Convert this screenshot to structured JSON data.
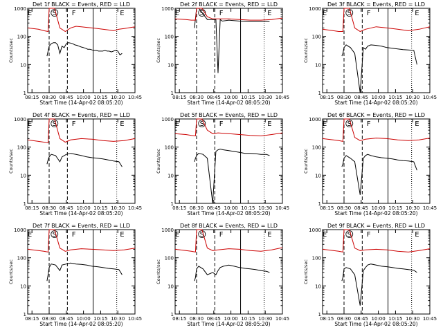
{
  "chart_data": [
    {
      "type": "line",
      "title": "Det 1f BLACK = Events, RED = LLD",
      "xlabel": "Start Time (14-Apr-02 08:05:20)",
      "ylabel": "Counts/sec",
      "x_ticks": [
        "08:15",
        "08:30",
        "08:45",
        "10:00",
        "10:15",
        "10:30",
        "10:45"
      ],
      "y_ticks": [
        "1",
        "10",
        "100",
        "1000"
      ],
      "ylim": [
        1,
        1000
      ],
      "yscale": "log",
      "markers": [
        "E",
        "S",
        "F",
        "E"
      ],
      "series": [
        {
          "color": "#000000",
          "x": [
            0.18,
            0.19,
            0.2,
            0.22,
            0.24,
            0.26,
            0.28,
            0.3,
            0.32,
            0.34,
            0.36,
            0.38,
            0.4,
            0.42,
            0.44,
            0.46,
            0.48,
            0.5,
            0.52,
            0.54,
            0.56,
            0.58,
            0.6,
            0.62,
            0.64,
            0.66,
            0.68,
            0.7,
            0.72,
            0.74,
            0.76,
            0.78,
            0.8,
            0.82,
            0.84,
            0.86,
            0.88
          ],
          "y": [
            20,
            30,
            45,
            55,
            60,
            60,
            50,
            25,
            45,
            40,
            55,
            60,
            58,
            55,
            50,
            48,
            45,
            42,
            40,
            38,
            35,
            35,
            33,
            32,
            32,
            30,
            30,
            30,
            32,
            30,
            30,
            28,
            30,
            32,
            30,
            22,
            25
          ]
        },
        {
          "color": "#cc0000",
          "x": [
            0.0,
            0.1,
            0.15,
            0.19,
            0.2,
            0.25,
            0.3,
            0.35,
            0.4,
            0.45,
            0.5,
            0.55,
            0.6,
            0.65,
            0.7,
            0.75,
            0.8,
            0.85,
            0.9,
            1.0
          ],
          "y": [
            200,
            180,
            160,
            150,
            1000,
            1000,
            200,
            150,
            200,
            230,
            220,
            210,
            200,
            190,
            180,
            170,
            160,
            180,
            190,
            220
          ]
        }
      ]
    },
    {
      "type": "line",
      "title": "Det 2f BLACK = Events, RED = LLD",
      "xlabel": "Start Time (14-Apr-02 08:05:20)",
      "ylabel": "Counts/sec",
      "x_ticks": [
        "08:15",
        "08:30",
        "08:45",
        "10:00",
        "10:15",
        "10:30",
        "10:45"
      ],
      "y_ticks": [
        "1",
        "10",
        "100",
        "1000"
      ],
      "ylim": [
        1,
        1000
      ],
      "yscale": "log",
      "markers": [
        "E",
        "S",
        "F",
        "E"
      ],
      "series": [
        {
          "color": "#000000",
          "x": [
            0.18,
            0.2,
            0.22,
            0.3,
            0.38,
            0.4,
            0.42,
            0.44,
            0.5,
            0.6,
            0.7,
            0.8,
            0.88
          ],
          "y": [
            200,
            1000,
            1000,
            400,
            400,
            5,
            400,
            350,
            380,
            350,
            340,
            340,
            340
          ]
        },
        {
          "color": "#cc0000",
          "x": [
            0.0,
            0.1,
            0.15,
            0.19,
            0.2,
            0.25,
            0.3,
            0.35,
            0.4,
            0.5,
            0.6,
            0.7,
            0.8,
            0.9,
            1.0
          ],
          "y": [
            420,
            400,
            380,
            380,
            1000,
            1000,
            500,
            420,
            420,
            420,
            400,
            380,
            380,
            400,
            450
          ]
        }
      ]
    },
    {
      "type": "line",
      "title": "Det 3f BLACK = Events, RED = LLD",
      "xlabel": "Start Time (14-Apr-02 08:05:20)",
      "ylabel": "Counts/sec",
      "x_ticks": [
        "08:15",
        "08:30",
        "08:45",
        "10:00",
        "10:15",
        "10:30",
        "10:45"
      ],
      "y_ticks": [
        "1",
        "10",
        "100",
        "1000"
      ],
      "ylim": [
        1,
        1000
      ],
      "yscale": "log",
      "markers": [
        "E",
        "S",
        "F",
        "E"
      ],
      "series": [
        {
          "color": "#000000",
          "x": [
            0.18,
            0.19,
            0.2,
            0.22,
            0.26,
            0.3,
            0.35,
            0.38,
            0.4,
            0.42,
            0.45,
            0.5,
            0.55,
            0.6,
            0.65,
            0.7,
            0.75,
            0.8,
            0.85,
            0.88
          ],
          "y": [
            20,
            25,
            40,
            50,
            40,
            25,
            1,
            40,
            35,
            45,
            50,
            48,
            45,
            40,
            38,
            36,
            34,
            33,
            32,
            10
          ]
        },
        {
          "color": "#cc0000",
          "x": [
            0.0,
            0.1,
            0.15,
            0.19,
            0.2,
            0.25,
            0.3,
            0.35,
            0.4,
            0.5,
            0.6,
            0.7,
            0.8,
            0.9,
            1.0
          ],
          "y": [
            180,
            160,
            150,
            150,
            1000,
            1000,
            200,
            150,
            180,
            220,
            200,
            180,
            160,
            180,
            220
          ]
        }
      ]
    },
    {
      "type": "line",
      "title": "Det 4f BLACK = Events, RED = LLD",
      "xlabel": "Start Time (14-Apr-02 08:05:20)",
      "ylabel": "Counts/sec",
      "x_ticks": [
        "08:15",
        "08:30",
        "08:45",
        "10:00",
        "10:15",
        "10:30",
        "10:45"
      ],
      "y_ticks": [
        "1",
        "10",
        "100",
        "1000"
      ],
      "ylim": [
        1,
        1000
      ],
      "yscale": "log",
      "markers": [
        "E",
        "S",
        "F",
        "E"
      ],
      "series": [
        {
          "color": "#000000",
          "x": [
            0.18,
            0.19,
            0.2,
            0.22,
            0.26,
            0.3,
            0.32,
            0.36,
            0.4,
            0.45,
            0.5,
            0.55,
            0.6,
            0.65,
            0.7,
            0.75,
            0.8,
            0.85,
            0.88
          ],
          "y": [
            25,
            35,
            45,
            55,
            50,
            30,
            45,
            55,
            60,
            55,
            50,
            45,
            42,
            40,
            38,
            35,
            32,
            30,
            20
          ]
        },
        {
          "color": "#cc0000",
          "x": [
            0.0,
            0.1,
            0.15,
            0.19,
            0.2,
            0.25,
            0.3,
            0.35,
            0.4,
            0.5,
            0.6,
            0.7,
            0.8,
            0.9,
            1.0
          ],
          "y": [
            180,
            160,
            150,
            140,
            1000,
            1000,
            200,
            150,
            180,
            200,
            190,
            170,
            160,
            170,
            200
          ]
        }
      ]
    },
    {
      "type": "line",
      "title": "Det 5f BLACK = Events, RED = LLD",
      "xlabel": "Start Time (14-Apr-02 08:05:20)",
      "ylabel": "Counts/sec",
      "x_ticks": [
        "08:15",
        "08:30",
        "08:45",
        "10:00",
        "10:15",
        "10:30",
        "10:45"
      ],
      "y_ticks": [
        "1",
        "10",
        "100",
        "1000"
      ],
      "ylim": [
        1,
        1000
      ],
      "yscale": "log",
      "markers": [
        "E",
        "S",
        "F",
        "E"
      ],
      "series": [
        {
          "color": "#000000",
          "x": [
            0.18,
            0.19,
            0.2,
            0.22,
            0.26,
            0.3,
            0.35,
            0.38,
            0.4,
            0.42,
            0.45,
            0.5,
            0.55,
            0.6,
            0.65,
            0.7,
            0.75,
            0.8,
            0.85,
            0.88
          ],
          "y": [
            30,
            40,
            50,
            60,
            55,
            40,
            1,
            70,
            80,
            85,
            80,
            75,
            70,
            65,
            60,
            60,
            58,
            55,
            55,
            50
          ]
        },
        {
          "color": "#cc0000",
          "x": [
            0.0,
            0.1,
            0.15,
            0.19,
            0.2,
            0.25,
            0.3,
            0.35,
            0.4,
            0.5,
            0.6,
            0.7,
            0.8,
            0.9,
            1.0
          ],
          "y": [
            300,
            280,
            260,
            250,
            1000,
            1000,
            400,
            300,
            320,
            300,
            280,
            260,
            250,
            280,
            320
          ]
        }
      ]
    },
    {
      "type": "line",
      "title": "Det 6f BLACK = Events, RED = LLD",
      "xlabel": "Start Time (14-Apr-02 08:05:20)",
      "ylabel": "Counts/sec",
      "x_ticks": [
        "08:15",
        "08:30",
        "08:45",
        "10:00",
        "10:15",
        "10:30",
        "10:45"
      ],
      "y_ticks": [
        "1",
        "10",
        "100",
        "1000"
      ],
      "ylim": [
        1,
        1000
      ],
      "yscale": "log",
      "markers": [
        "E",
        "S",
        "F",
        "E"
      ],
      "series": [
        {
          "color": "#000000",
          "x": [
            0.18,
            0.19,
            0.2,
            0.22,
            0.26,
            0.3,
            0.35,
            0.38,
            0.4,
            0.42,
            0.45,
            0.5,
            0.55,
            0.6,
            0.65,
            0.7,
            0.75,
            0.8,
            0.85,
            0.88
          ],
          "y": [
            20,
            25,
            40,
            50,
            40,
            30,
            2,
            40,
            50,
            55,
            50,
            45,
            42,
            40,
            38,
            35,
            33,
            32,
            30,
            15
          ]
        },
        {
          "color": "#cc0000",
          "x": [
            0.0,
            0.1,
            0.15,
            0.19,
            0.2,
            0.25,
            0.3,
            0.35,
            0.4,
            0.5,
            0.6,
            0.7,
            0.8,
            0.9,
            1.0
          ],
          "y": [
            200,
            180,
            170,
            160,
            1000,
            1000,
            220,
            170,
            190,
            210,
            200,
            180,
            170,
            180,
            210
          ]
        }
      ]
    },
    {
      "type": "line",
      "title": "Det 7f BLACK = Events, RED = LLD",
      "xlabel": "Start Time (14-Apr-02 08:05:20)",
      "ylabel": "Counts/sec",
      "x_ticks": [
        "08:15",
        "08:30",
        "08:45",
        "10:00",
        "10:15",
        "10:30",
        "10:45"
      ],
      "y_ticks": [
        "1",
        "10",
        "100",
        "1000"
      ],
      "ylim": [
        1,
        1000
      ],
      "yscale": "log",
      "markers": [
        "E",
        "S",
        "F",
        "E"
      ],
      "series": [
        {
          "color": "#000000",
          "x": [
            0.18,
            0.19,
            0.2,
            0.22,
            0.26,
            0.3,
            0.32,
            0.36,
            0.4,
            0.45,
            0.5,
            0.55,
            0.6,
            0.65,
            0.7,
            0.75,
            0.8,
            0.85,
            0.88
          ],
          "y": [
            15,
            25,
            45,
            60,
            55,
            35,
            55,
            60,
            65,
            60,
            58,
            55,
            50,
            48,
            45,
            42,
            40,
            38,
            25
          ]
        },
        {
          "color": "#cc0000",
          "x": [
            0.0,
            0.1,
            0.15,
            0.19,
            0.2,
            0.25,
            0.3,
            0.35,
            0.4,
            0.5,
            0.6,
            0.7,
            0.8,
            0.9,
            1.0
          ],
          "y": [
            200,
            180,
            170,
            160,
            1000,
            1000,
            220,
            170,
            190,
            210,
            200,
            190,
            180,
            190,
            220
          ]
        }
      ]
    },
    {
      "type": "line",
      "title": "Det 8f BLACK = Events, RED = LLD",
      "xlabel": "Start Time (14-Apr-02 08:05:20)",
      "ylabel": "Counts/sec",
      "x_ticks": [
        "08:15",
        "08:30",
        "08:45",
        "10:00",
        "10:15",
        "10:30",
        "10:45"
      ],
      "y_ticks": [
        "1",
        "10",
        "100",
        "1000"
      ],
      "ylim": [
        1,
        1000
      ],
      "yscale": "log",
      "markers": [
        "E",
        "S",
        "F",
        "E"
      ],
      "series": [
        {
          "color": "#000000",
          "x": [
            0.18,
            0.19,
            0.2,
            0.22,
            0.26,
            0.3,
            0.35,
            0.38,
            0.4,
            0.42,
            0.45,
            0.5,
            0.55,
            0.6,
            0.65,
            0.7,
            0.75,
            0.8,
            0.85,
            0.88
          ],
          "y": [
            15,
            20,
            40,
            50,
            40,
            25,
            30,
            25,
            35,
            45,
            50,
            55,
            50,
            45,
            42,
            40,
            38,
            35,
            33,
            30
          ]
        },
        {
          "color": "#cc0000",
          "x": [
            0.0,
            0.1,
            0.15,
            0.19,
            0.2,
            0.25,
            0.3,
            0.35,
            0.4,
            0.5,
            0.6,
            0.7,
            0.8,
            0.9,
            1.0
          ],
          "y": [
            200,
            180,
            170,
            160,
            1000,
            1000,
            220,
            180,
            190,
            210,
            200,
            180,
            170,
            190,
            230
          ]
        }
      ]
    },
    {
      "type": "line",
      "title": "Det 9f BLACK = Events, RED = LLD",
      "xlabel": "Start Time (14-Apr-02 08:05:20)",
      "ylabel": "Counts/sec",
      "x_ticks": [
        "08:15",
        "08:30",
        "08:45",
        "10:00",
        "10:15",
        "10:30",
        "10:45"
      ],
      "y_ticks": [
        "1",
        "10",
        "100",
        "1000"
      ],
      "ylim": [
        1,
        1000
      ],
      "yscale": "log",
      "markers": [
        "E",
        "S",
        "F",
        "E"
      ],
      "series": [
        {
          "color": "#000000",
          "x": [
            0.18,
            0.19,
            0.2,
            0.22,
            0.26,
            0.3,
            0.35,
            0.38,
            0.4,
            0.42,
            0.45,
            0.5,
            0.55,
            0.6,
            0.65,
            0.7,
            0.75,
            0.8,
            0.85,
            0.88
          ],
          "y": [
            15,
            20,
            40,
            45,
            40,
            25,
            2,
            35,
            45,
            55,
            60,
            55,
            50,
            48,
            45,
            42,
            40,
            38,
            36,
            30
          ]
        },
        {
          "color": "#cc0000",
          "x": [
            0.0,
            0.1,
            0.15,
            0.19,
            0.2,
            0.25,
            0.3,
            0.35,
            0.4,
            0.5,
            0.6,
            0.7,
            0.8,
            0.9,
            1.0
          ],
          "y": [
            200,
            180,
            170,
            160,
            1000,
            1000,
            220,
            180,
            190,
            200,
            190,
            170,
            160,
            180,
            210
          ]
        }
      ]
    }
  ]
}
